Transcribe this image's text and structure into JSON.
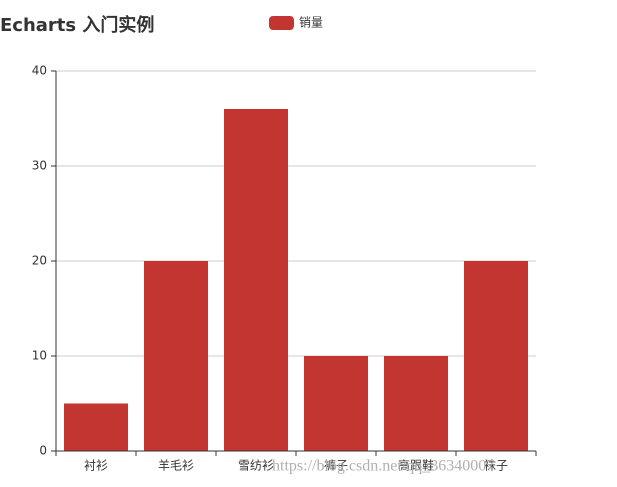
{
  "chart_data": {
    "type": "bar",
    "title": "Echarts 入门实例",
    "categories": [
      "衬衫",
      "羊毛衫",
      "雪纺衫",
      "裤子",
      "高跟鞋",
      "袜子"
    ],
    "series": [
      {
        "name": "销量",
        "color": "#c23531",
        "values": [
          5,
          20,
          36,
          10,
          10,
          20
        ]
      }
    ],
    "ylim": [
      0,
      40
    ],
    "yticks": [
      0,
      10,
      20,
      30,
      40
    ],
    "grid": true
  },
  "watermark": "https://blog.csdn.net/qq_36340007"
}
